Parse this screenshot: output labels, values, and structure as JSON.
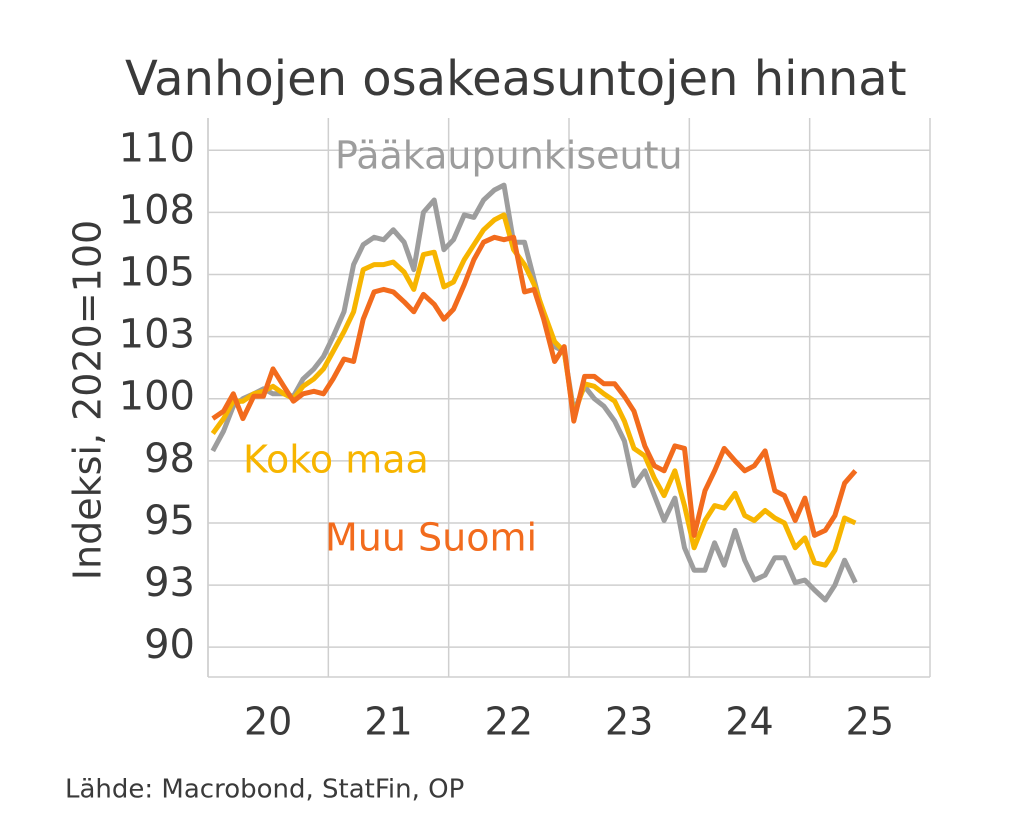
{
  "chart_data": {
    "type": "line",
    "title": "Vanhojen osakeasuntojen hinnat",
    "y_label": "Indeksi, 2020=100",
    "source": "Lähde: Macrobond, StatFin, OP",
    "xlim": [
      20,
      26
    ],
    "xticks": [
      20,
      21,
      22,
      23,
      24,
      25
    ],
    "ylim": [
      88.8,
      111.3
    ],
    "yticks": [
      90,
      {
        "value": 92.5,
        "label": "93"
      },
      95,
      {
        "value": 97.5,
        "label": "98"
      },
      100,
      {
        "value": 102.5,
        "label": "103"
      },
      105,
      {
        "value": 107.5,
        "label": "108"
      },
      110
    ],
    "grid": true,
    "x": [
      20.04,
      20.13,
      20.21,
      20.29,
      20.38,
      20.46,
      20.54,
      20.63,
      20.71,
      20.79,
      20.88,
      20.96,
      21.04,
      21.13,
      21.21,
      21.29,
      21.38,
      21.46,
      21.54,
      21.63,
      21.71,
      21.79,
      21.88,
      21.96,
      22.04,
      22.13,
      22.21,
      22.29,
      22.38,
      22.46,
      22.54,
      22.63,
      22.71,
      22.79,
      22.88,
      22.96,
      23.04,
      23.13,
      23.21,
      23.29,
      23.38,
      23.46,
      23.54,
      23.63,
      23.71,
      23.79,
      23.88,
      23.96,
      24.04,
      24.13,
      24.21,
      24.29,
      24.38,
      24.46,
      24.54,
      24.63,
      24.71,
      24.79,
      24.88,
      24.96,
      25.04,
      25.13,
      25.21,
      25.29,
      25.38
    ],
    "series": [
      {
        "name": "Pääkaupunkiseutu",
        "color": "#9d9d9d",
        "values": [
          97.9,
          98.7,
          99.7,
          100.0,
          100.2,
          100.4,
          100.2,
          100.2,
          100.1,
          100.8,
          101.2,
          101.7,
          102.5,
          103.5,
          105.4,
          106.2,
          106.5,
          106.4,
          106.8,
          106.3,
          105.2,
          107.5,
          108.0,
          106.0,
          106.4,
          107.4,
          107.3,
          108.0,
          108.4,
          108.6,
          106.3,
          106.3,
          104.8,
          103.3,
          102.1,
          101.9,
          99.5,
          100.5,
          100.0,
          99.7,
          99.1,
          98.3,
          96.5,
          97.1,
          96.1,
          95.1,
          96.0,
          94.0,
          93.1,
          93.1,
          94.2,
          93.3,
          94.7,
          93.5,
          92.7,
          92.9,
          93.6,
          93.6,
          92.6,
          92.7,
          92.3,
          91.9,
          92.5,
          93.5,
          92.6
        ]
      },
      {
        "name": "Koko maa",
        "color": "#f7b500",
        "values": [
          98.6,
          99.2,
          99.9,
          99.9,
          100.2,
          100.3,
          100.5,
          100.2,
          100.0,
          100.5,
          100.8,
          101.2,
          101.9,
          102.7,
          103.5,
          105.2,
          105.4,
          105.4,
          105.5,
          105.1,
          104.4,
          105.8,
          105.9,
          104.5,
          104.7,
          105.6,
          106.2,
          106.8,
          107.2,
          107.4,
          106.0,
          105.4,
          104.6,
          103.5,
          102.3,
          101.9,
          99.3,
          100.6,
          100.5,
          100.2,
          99.9,
          99.1,
          98.0,
          97.7,
          96.8,
          96.1,
          97.1,
          95.7,
          94.0,
          95.1,
          95.7,
          95.6,
          96.2,
          95.3,
          95.1,
          95.5,
          95.2,
          95.0,
          94.0,
          94.4,
          93.4,
          93.3,
          93.9,
          95.2,
          95.0
        ]
      },
      {
        "name": "Muu Suomi",
        "color": "#f26b1d",
        "values": [
          99.2,
          99.5,
          100.2,
          99.2,
          100.1,
          100.1,
          101.2,
          100.5,
          99.9,
          100.2,
          100.3,
          100.2,
          100.8,
          101.6,
          101.5,
          103.2,
          104.3,
          104.4,
          104.3,
          103.9,
          103.5,
          104.2,
          103.8,
          103.2,
          103.6,
          104.6,
          105.6,
          106.3,
          106.5,
          106.4,
          106.5,
          104.3,
          104.4,
          103.2,
          101.5,
          102.1,
          99.1,
          100.9,
          100.9,
          100.6,
          100.6,
          100.1,
          99.5,
          98.1,
          97.3,
          97.1,
          98.1,
          98.0,
          94.5,
          96.3,
          97.1,
          98.0,
          97.5,
          97.1,
          97.3,
          97.9,
          96.3,
          96.1,
          95.1,
          96.0,
          94.5,
          94.7,
          95.3,
          96.6,
          97.1
        ]
      }
    ]
  }
}
